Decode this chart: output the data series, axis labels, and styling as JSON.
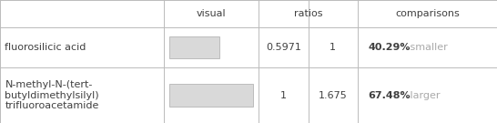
{
  "rows": [
    {
      "name": "fluorosilicic acid",
      "ratio1": "0.5971",
      "ratio2": "1",
      "comparison_pct": "40.29%",
      "comparison_word": "smaller",
      "bar_ratio": 0.5971,
      "bar_color": "#d9d9d9"
    },
    {
      "name": "N-methyl-N-(tert-\nbutyldimethylsilyl)\ntrifluoroacetamide",
      "ratio1": "1",
      "ratio2": "1.675",
      "comparison_pct": "67.48%",
      "comparison_word": "larger",
      "bar_ratio": 1.0,
      "bar_color": "#d9d9d9"
    }
  ],
  "grid_color": "#bbbbbb",
  "text_color": "#404040",
  "comparison_word_color": "#aaaaaa",
  "bar_edge_color": "#aaaaaa",
  "font_size": 8,
  "header_font_size": 8,
  "bar_height": 0.18,
  "background_color": "#ffffff",
  "col_bounds": [
    0.0,
    0.33,
    0.52,
    0.62,
    0.72,
    1.0
  ],
  "row_bounds": [
    0.0,
    0.45,
    0.78,
    1.0
  ]
}
